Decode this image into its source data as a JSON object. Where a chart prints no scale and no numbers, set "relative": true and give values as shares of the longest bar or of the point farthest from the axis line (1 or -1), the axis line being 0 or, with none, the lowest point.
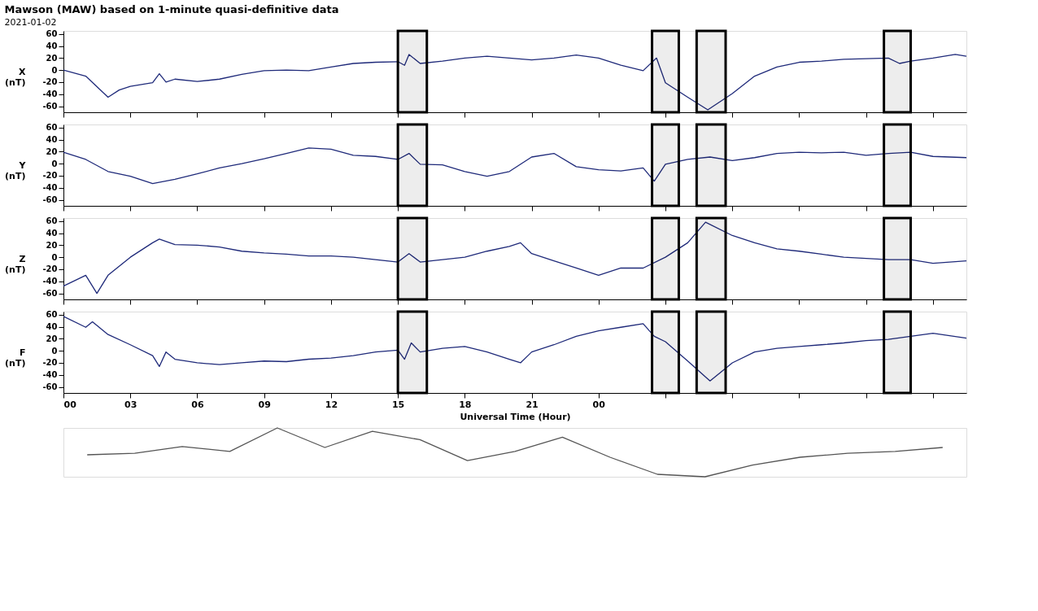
{
  "chart_data": [
    {
      "type": "line",
      "title": "Mawson (MAW) based on 1-minute quasi-definitive data",
      "subtitle": "2021-01-02",
      "ylabel": "X (nT)",
      "tick_labels": "y",
      "x": [
        0,
        1,
        2,
        2.5,
        3,
        4,
        4.3,
        4.6,
        5,
        6,
        7,
        8,
        9,
        10,
        11,
        12,
        13,
        14,
        15,
        15.3,
        15.5,
        16,
        17,
        18,
        19,
        20,
        21,
        22,
        23,
        24,
        25,
        26,
        26.6,
        27,
        28,
        28.9,
        30,
        31,
        32,
        33,
        34,
        35,
        36,
        37,
        37.5,
        38,
        39,
        40,
        40.5
      ],
      "series": [
        {
          "color": "#1f2a7a",
          "values": [
            0,
            -10,
            -45,
            -33,
            -27,
            -21,
            -6,
            -20,
            -15,
            -19,
            -15,
            -7,
            -1,
            0,
            -1,
            5,
            11,
            13,
            14,
            8,
            26,
            11,
            15,
            20,
            23,
            20,
            17,
            20,
            25,
            20,
            8,
            -1,
            20,
            -21,
            -45,
            -66,
            -39,
            -10,
            5,
            13,
            15,
            18,
            19,
            20,
            11,
            15,
            20,
            26,
            23
          ]
        }
      ],
      "xlim": [
        0,
        40.5
      ],
      "ylim": [
        -70,
        65
      ],
      "yticks": [
        -60,
        -40,
        -20,
        0,
        20,
        40,
        60
      ],
      "bands": [
        {
          "axis": "x",
          "from": 15.0,
          "to": 16.3,
          "color": "#000000"
        },
        {
          "axis": "x",
          "from": 26.4,
          "to": 27.6,
          "color": "#000000"
        },
        {
          "axis": "x",
          "from": 28.4,
          "to": 29.7,
          "color": "#000000"
        },
        {
          "axis": "x",
          "from": 36.8,
          "to": 38.0,
          "color": "#000000"
        }
      ],
      "grid": false,
      "marker": "none",
      "line_style": "solid"
    },
    {
      "type": "line",
      "ylabel": "Y (nT)",
      "tick_labels": "y",
      "x": [
        0,
        1,
        2,
        3,
        4,
        5,
        6,
        7,
        8,
        9,
        10,
        11,
        12,
        13,
        14,
        15,
        15.5,
        16,
        17,
        18,
        19,
        20,
        21,
        22,
        23,
        24,
        25,
        26,
        26.5,
        27,
        28,
        29,
        30,
        31,
        32,
        33,
        34,
        35,
        36,
        37,
        38,
        39,
        40.5
      ],
      "series": [
        {
          "color": "#1f2a7a",
          "values": [
            19,
            7,
            -13,
            -21,
            -33,
            -26,
            -17,
            -7,
            0,
            8,
            17,
            26,
            24,
            14,
            12,
            7,
            17,
            -1,
            -2,
            -13,
            -21,
            -13,
            11,
            17,
            -5,
            -10,
            -12,
            -7,
            -29,
            -1,
            7,
            11,
            5,
            10,
            17,
            19,
            18,
            19,
            14,
            17,
            19,
            12,
            10
          ]
        }
      ],
      "xlim": [
        0,
        40.5
      ],
      "ylim": [
        -70,
        65
      ],
      "yticks": [
        -60,
        -40,
        -20,
        0,
        20,
        40,
        60
      ],
      "bands": [
        {
          "axis": "x",
          "from": 15.0,
          "to": 16.3,
          "color": "#000000"
        },
        {
          "axis": "x",
          "from": 26.4,
          "to": 27.6,
          "color": "#000000"
        },
        {
          "axis": "x",
          "from": 28.4,
          "to": 29.7,
          "color": "#000000"
        },
        {
          "axis": "x",
          "from": 36.8,
          "to": 38.0,
          "color": "#000000"
        }
      ],
      "grid": false,
      "marker": "none",
      "line_style": "solid"
    },
    {
      "type": "line",
      "ylabel": "Z (nT)",
      "tick_labels": "y",
      "x": [
        0,
        1,
        1.5,
        2,
        3,
        4,
        4.3,
        5,
        6,
        7,
        8,
        9,
        10,
        11,
        12,
        13,
        14,
        15,
        15.5,
        16,
        17,
        18,
        19,
        20,
        20.5,
        21,
        22,
        23,
        24,
        25,
        26,
        27,
        28,
        28.8,
        30,
        31,
        32,
        33,
        34,
        35,
        36,
        37,
        38,
        39,
        40.5
      ],
      "series": [
        {
          "color": "#1f2a7a",
          "values": [
            -48,
            -30,
            -60,
            -30,
            0,
            24,
            30,
            21,
            20,
            17,
            10,
            7,
            5,
            2,
            2,
            0,
            -4,
            -8,
            6,
            -8,
            -4,
            0,
            10,
            18,
            24,
            6,
            -6,
            -18,
            -30,
            -18,
            -18,
            0,
            24,
            58,
            36,
            24,
            14,
            10,
            5,
            0,
            -2,
            -4,
            -4,
            -10,
            -6
          ]
        }
      ],
      "xlim": [
        0,
        40.5
      ],
      "ylim": [
        -70,
        65
      ],
      "yticks": [
        -60,
        -40,
        -20,
        0,
        20,
        40,
        60
      ],
      "bands": [
        {
          "axis": "x",
          "from": 15.0,
          "to": 16.3,
          "color": "#000000"
        },
        {
          "axis": "x",
          "from": 26.4,
          "to": 27.6,
          "color": "#000000"
        },
        {
          "axis": "x",
          "from": 28.4,
          "to": 29.7,
          "color": "#000000"
        },
        {
          "axis": "x",
          "from": 36.8,
          "to": 38.0,
          "color": "#000000"
        }
      ],
      "grid": false,
      "marker": "none",
      "line_style": "solid"
    },
    {
      "type": "line",
      "ylabel": "F (nT)",
      "xlabel": "Universal Time (Hour)",
      "x": [
        0,
        1,
        1.3,
        2,
        3,
        4,
        4.3,
        4.6,
        5,
        6,
        7,
        8,
        9,
        10,
        11,
        12,
        13,
        14,
        15,
        15.3,
        15.6,
        16,
        17,
        18,
        19,
        20,
        20.5,
        21,
        22,
        23,
        24,
        25,
        26,
        26.5,
        27,
        28,
        29,
        30,
        31,
        32,
        33,
        34,
        35,
        36,
        37,
        38,
        39,
        40.5
      ],
      "series": [
        {
          "color": "#1f2a7a",
          "values": [
            57,
            39,
            48,
            27,
            10,
            -8,
            -26,
            -2,
            -14,
            -20,
            -23,
            -20,
            -17,
            -18,
            -14,
            -12,
            -8,
            -2,
            1,
            -14,
            13,
            -2,
            4,
            7,
            -2,
            -14,
            -20,
            -2,
            10,
            24,
            33,
            39,
            45,
            24,
            15,
            -17,
            -50,
            -20,
            -2,
            4,
            7,
            10,
            13,
            17,
            19,
            24,
            29,
            21
          ]
        }
      ],
      "xlim": [
        0,
        40.5
      ],
      "ylim": [
        -70,
        65
      ],
      "yticks": [
        -60,
        -40,
        -20,
        0,
        20,
        40,
        60
      ],
      "xticks": [
        {
          "value": 0,
          "label": "00"
        },
        {
          "value": 3,
          "label": "03"
        },
        {
          "value": 6,
          "label": "06"
        },
        {
          "value": 9,
          "label": "09"
        },
        {
          "value": 12,
          "label": "12"
        },
        {
          "value": 15,
          "label": "15"
        },
        {
          "value": 18,
          "label": "18"
        },
        {
          "value": 21,
          "label": "21"
        },
        {
          "value": 24,
          "label": "00"
        },
        {
          "value": 27,
          "label": null
        },
        {
          "value": 30,
          "label": null
        },
        {
          "value": 33,
          "label": null
        },
        {
          "value": 36,
          "label": null
        },
        {
          "value": 39,
          "label": null
        }
      ],
      "bands": [
        {
          "axis": "x",
          "from": 15.0,
          "to": 16.3,
          "color": "#000000"
        },
        {
          "axis": "x",
          "from": 26.4,
          "to": 27.6,
          "color": "#000000"
        },
        {
          "axis": "x",
          "from": 28.4,
          "to": 29.7,
          "color": "#000000"
        },
        {
          "axis": "x",
          "from": 36.8,
          "to": 38.0,
          "color": "#000000"
        }
      ],
      "grid": false,
      "marker": "none",
      "line_style": "solid"
    },
    {
      "type": "line",
      "relative": true,
      "tick_labels": false,
      "categories": [
        null,
        null,
        null,
        null,
        null,
        null,
        null,
        null,
        null,
        null,
        null,
        null,
        null,
        null,
        null,
        null,
        null,
        null,
        null
      ],
      "series": [
        {
          "color": "#555555",
          "values": [
            0.45,
            0.48,
            0.62,
            0.52,
            1.0,
            0.6,
            0.93,
            0.76,
            0.33,
            0.52,
            0.81,
            0.4,
            0.05,
            0,
            0.24,
            0.4,
            0.48,
            0.52,
            0.6
          ]
        }
      ],
      "grid": false,
      "marker": "none",
      "line_style": "solid"
    }
  ]
}
